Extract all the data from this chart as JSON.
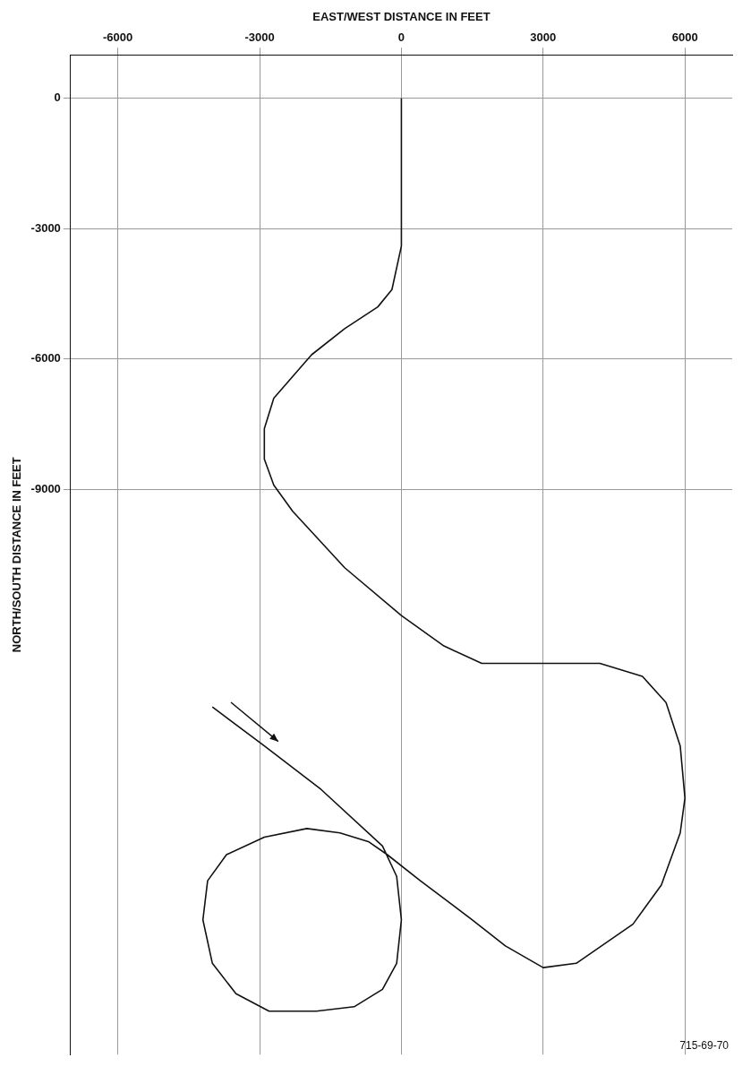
{
  "chart_data": {
    "type": "line",
    "xlabel": "EAST/WEST DISTANCE IN FEET",
    "ylabel": "NORTH/SOUTH DISTANCE IN FEET",
    "xlim": [
      -7000,
      7000
    ],
    "xticks": [
      -6000,
      -3000,
      0,
      3000,
      6000
    ],
    "ylim": [
      -22000,
      1000
    ],
    "yticks": [
      0,
      -3000,
      -6000,
      -9000
    ],
    "grid": true,
    "legend": false,
    "marker": "none",
    "line_style": "solid",
    "annotations": [
      "715-69-70"
    ],
    "series": [
      {
        "color": "#111111",
        "x": [
          -4000,
          -2900,
          -1700,
          -400,
          -100,
          0,
          -100,
          -400,
          -1000,
          -1800,
          -2800,
          -3500,
          -4000,
          -4200,
          -4100,
          -3700,
          -2900,
          -2000,
          -1300,
          -700,
          -300,
          400,
          1500,
          2200,
          3000,
          3700,
          4900,
          5500,
          5900,
          6000,
          5900,
          5600,
          5100,
          4200,
          1700,
          900,
          0,
          -1200,
          -2300,
          -2700,
          -2900,
          -2900,
          -2700,
          -2300,
          -1900,
          -1200,
          -500,
          -200,
          0,
          0
        ],
        "values": [
          -14000,
          -14900,
          -15900,
          -17200,
          -17900,
          -18900,
          -19900,
          -20500,
          -20900,
          -21000,
          -21000,
          -20600,
          -19900,
          -18900,
          -18000,
          -17400,
          -17000,
          -16800,
          -16900,
          -17100,
          -17400,
          -18000,
          -18900,
          -19500,
          -20000,
          -19900,
          -19000,
          -18100,
          -16900,
          -16100,
          -14900,
          -13900,
          -13300,
          -13000,
          -13000,
          -12600,
          -11900,
          -10800,
          -9500,
          -8900,
          -8300,
          -7600,
          -6900,
          -6400,
          -5900,
          -5300,
          -4800,
          -4400,
          -3400,
          0
        ]
      }
    ]
  }
}
